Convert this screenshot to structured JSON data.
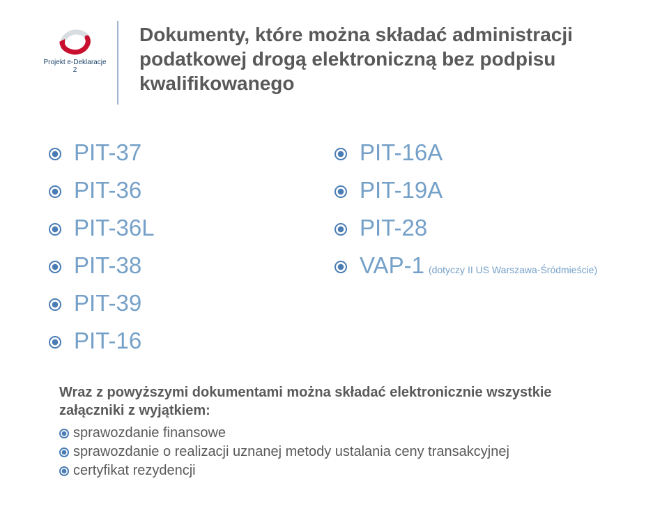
{
  "logo": {
    "caption": "Projekt e-Deklaracje 2",
    "arrow_color": "#c8102e",
    "caption_color": "#20456a"
  },
  "title": "Dokumenty, które można składać administracji podatkowej drogą elektroniczną bez podpisu kwalifikowanego",
  "colors": {
    "title": "#595959",
    "list_text": "#75a0c8",
    "bullet_outer": "#4a7db5",
    "bullet_inner": "#4a7db5",
    "divider": "#9fb6cc",
    "bottom_text": "#595959"
  },
  "left_list": [
    {
      "label": "PIT-37"
    },
    {
      "label": "PIT-36"
    },
    {
      "label": "PIT-36L"
    },
    {
      "label": "PIT-38"
    },
    {
      "label": "PIT-39"
    },
    {
      "label": "PIT-16"
    }
  ],
  "right_list": [
    {
      "label": "PIT-16A"
    },
    {
      "label": "PIT-19A"
    },
    {
      "label": "PIT-28"
    },
    {
      "label": "VAP-1",
      "note": "(dotyczy II US Warszawa-Śródmieście)"
    }
  ],
  "bottom": {
    "heading": "Wraz z powyższymi dokumentami można składać elektronicznie wszystkie załączniki z wyjątkiem:",
    "items": [
      "sprawozdanie finansowe",
      "sprawozdanie o realizacji uznanej metody ustalania ceny transakcyjnej",
      "certyfikat rezydencji"
    ]
  }
}
